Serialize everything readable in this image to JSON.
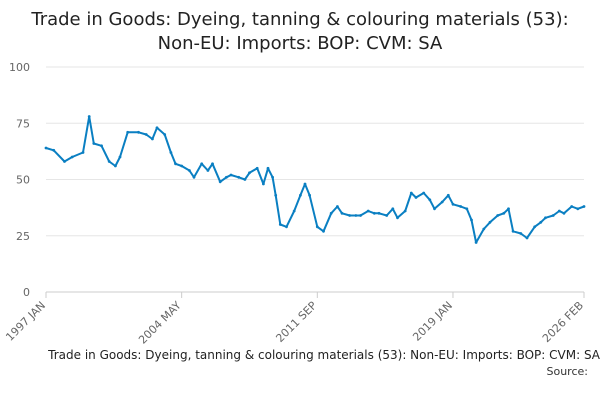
{
  "chart_data": {
    "type": "line",
    "title_line1": "Trade in Goods: Dyeing, tanning & colouring materials (53):",
    "title_line2": "Non-EU: Imports: BOP: CVM: SA",
    "footer_text": "Trade in Goods: Dyeing, tanning & colouring materials (53): Non-EU: Imports: BOP: CVM: SA",
    "source_label": "Source:",
    "xlabel": "",
    "ylabel": "",
    "ylim": [
      0,
      100
    ],
    "yticks": [
      "0",
      "25",
      "50",
      "75",
      "100"
    ],
    "xlim": [
      "1997 JAN",
      "2026 FEB"
    ],
    "xticks": [
      {
        "label": "1997 JAN",
        "date": "1997-01"
      },
      {
        "label": "2004 MAY",
        "date": "2004-05"
      },
      {
        "label": "2011 SEP",
        "date": "2011-09"
      },
      {
        "label": "2019 JAN",
        "date": "2019-01"
      },
      {
        "label": "2026 FEB",
        "date": "2026-02"
      }
    ],
    "grid": "horizontal",
    "colors": {
      "line": "#0a7fc2",
      "grid": "#e6e6e6",
      "axis": "#cccccc"
    },
    "series": [
      {
        "points": [
          [
            "1997-01",
            64
          ],
          [
            "1997-06",
            63
          ],
          [
            "1998-01",
            58
          ],
          [
            "1998-06",
            60
          ],
          [
            "1999-01",
            62
          ],
          [
            "1999-05",
            78
          ],
          [
            "1999-08",
            66
          ],
          [
            "2000-01",
            65
          ],
          [
            "2000-06",
            58
          ],
          [
            "2000-10",
            56
          ],
          [
            "2001-01",
            60
          ],
          [
            "2001-06",
            71
          ],
          [
            "2002-01",
            71
          ],
          [
            "2002-06",
            70
          ],
          [
            "2002-10",
            68
          ],
          [
            "2003-01",
            73
          ],
          [
            "2003-06",
            70
          ],
          [
            "2003-10",
            62
          ],
          [
            "2004-01",
            57
          ],
          [
            "2004-05",
            56
          ],
          [
            "2004-10",
            54
          ],
          [
            "2005-01",
            51
          ],
          [
            "2005-06",
            57
          ],
          [
            "2005-10",
            54
          ],
          [
            "2006-01",
            57
          ],
          [
            "2006-06",
            49
          ],
          [
            "2006-10",
            51
          ],
          [
            "2007-01",
            52
          ],
          [
            "2007-06",
            51
          ],
          [
            "2007-10",
            50
          ],
          [
            "2008-01",
            53
          ],
          [
            "2008-06",
            55
          ],
          [
            "2008-10",
            48
          ],
          [
            "2009-01",
            55
          ],
          [
            "2009-04",
            51
          ],
          [
            "2009-06",
            43
          ],
          [
            "2009-09",
            30
          ],
          [
            "2010-01",
            29
          ],
          [
            "2010-06",
            36
          ],
          [
            "2010-10",
            43
          ],
          [
            "2011-01",
            48
          ],
          [
            "2011-04",
            43
          ],
          [
            "2011-09",
            29
          ],
          [
            "2012-01",
            27
          ],
          [
            "2012-06",
            35
          ],
          [
            "2012-10",
            38
          ],
          [
            "2013-01",
            35
          ],
          [
            "2013-06",
            34
          ],
          [
            "2013-10",
            34
          ],
          [
            "2014-01",
            34
          ],
          [
            "2014-06",
            36
          ],
          [
            "2014-10",
            35
          ],
          [
            "2015-01",
            35
          ],
          [
            "2015-06",
            34
          ],
          [
            "2015-10",
            37
          ],
          [
            "2016-01",
            33
          ],
          [
            "2016-06",
            36
          ],
          [
            "2016-10",
            44
          ],
          [
            "2017-01",
            42
          ],
          [
            "2017-06",
            44
          ],
          [
            "2017-10",
            41
          ],
          [
            "2018-01",
            37
          ],
          [
            "2018-06",
            40
          ],
          [
            "2018-10",
            43
          ],
          [
            "2019-01",
            39
          ],
          [
            "2019-06",
            38
          ],
          [
            "2019-10",
            37
          ],
          [
            "2020-01",
            32
          ],
          [
            "2020-04",
            22
          ],
          [
            "2020-09",
            28
          ],
          [
            "2021-01",
            31
          ],
          [
            "2021-06",
            34
          ],
          [
            "2021-10",
            35
          ],
          [
            "2022-01",
            37
          ],
          [
            "2022-04",
            27
          ],
          [
            "2022-09",
            26
          ],
          [
            "2023-01",
            24
          ],
          [
            "2023-06",
            29
          ],
          [
            "2023-10",
            31
          ],
          [
            "2024-01",
            33
          ],
          [
            "2024-06",
            34
          ],
          [
            "2024-10",
            36
          ],
          [
            "2025-01",
            35
          ],
          [
            "2025-06",
            38
          ],
          [
            "2025-10",
            37
          ],
          [
            "2026-02",
            38
          ]
        ]
      }
    ]
  }
}
